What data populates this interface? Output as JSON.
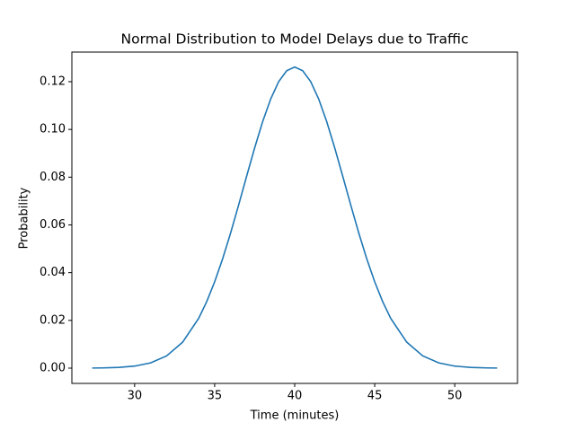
{
  "chart_data": {
    "type": "line",
    "title": "Normal Distribution to Model Delays due to Traffic",
    "xlabel": "Time (minutes)",
    "ylabel": "Probability",
    "x": [
      27.35,
      28,
      29,
      30,
      31,
      32,
      33,
      34,
      34.5,
      35,
      35.5,
      36,
      36.5,
      37,
      37.5,
      38,
      38.5,
      39,
      39.5,
      40,
      40.5,
      41,
      41.5,
      42,
      42.5,
      43,
      43.5,
      44,
      44.5,
      45,
      45.5,
      46,
      47,
      48,
      49,
      50,
      51,
      52,
      52.65
    ],
    "series": [
      {
        "color": "#1f77b4",
        "values": [
          4e-05,
          9e-05,
          0.0003,
          0.00085,
          0.0022,
          0.00514,
          0.01089,
          0.02085,
          0.0278,
          0.03615,
          0.04584,
          0.05669,
          0.06838,
          0.08044,
          0.0923,
          0.10329,
          0.11274,
          0.12001,
          0.12459,
          0.12616,
          0.12459,
          0.12001,
          0.11274,
          0.10329,
          0.0923,
          0.08044,
          0.06838,
          0.05669,
          0.04584,
          0.03615,
          0.0278,
          0.02085,
          0.01089,
          0.00514,
          0.0022,
          0.00085,
          0.0003,
          9e-05,
          4e-05
        ]
      }
    ],
    "xlim": [
      26.08,
      53.92
    ],
    "xticks": [
      30,
      35,
      40,
      45,
      50
    ],
    "ylim": [
      -0.0064,
      0.1324
    ],
    "yticks": [
      {
        "value": 0,
        "label": "0.00"
      },
      {
        "value": 0.02,
        "label": "0.02"
      },
      {
        "value": 0.04,
        "label": "0.04"
      },
      {
        "value": 0.06,
        "label": "0.06"
      },
      {
        "value": 0.08,
        "label": "0.08"
      },
      {
        "value": 0.1,
        "label": "0.10"
      },
      {
        "value": 0.12,
        "label": "0.12"
      }
    ]
  }
}
